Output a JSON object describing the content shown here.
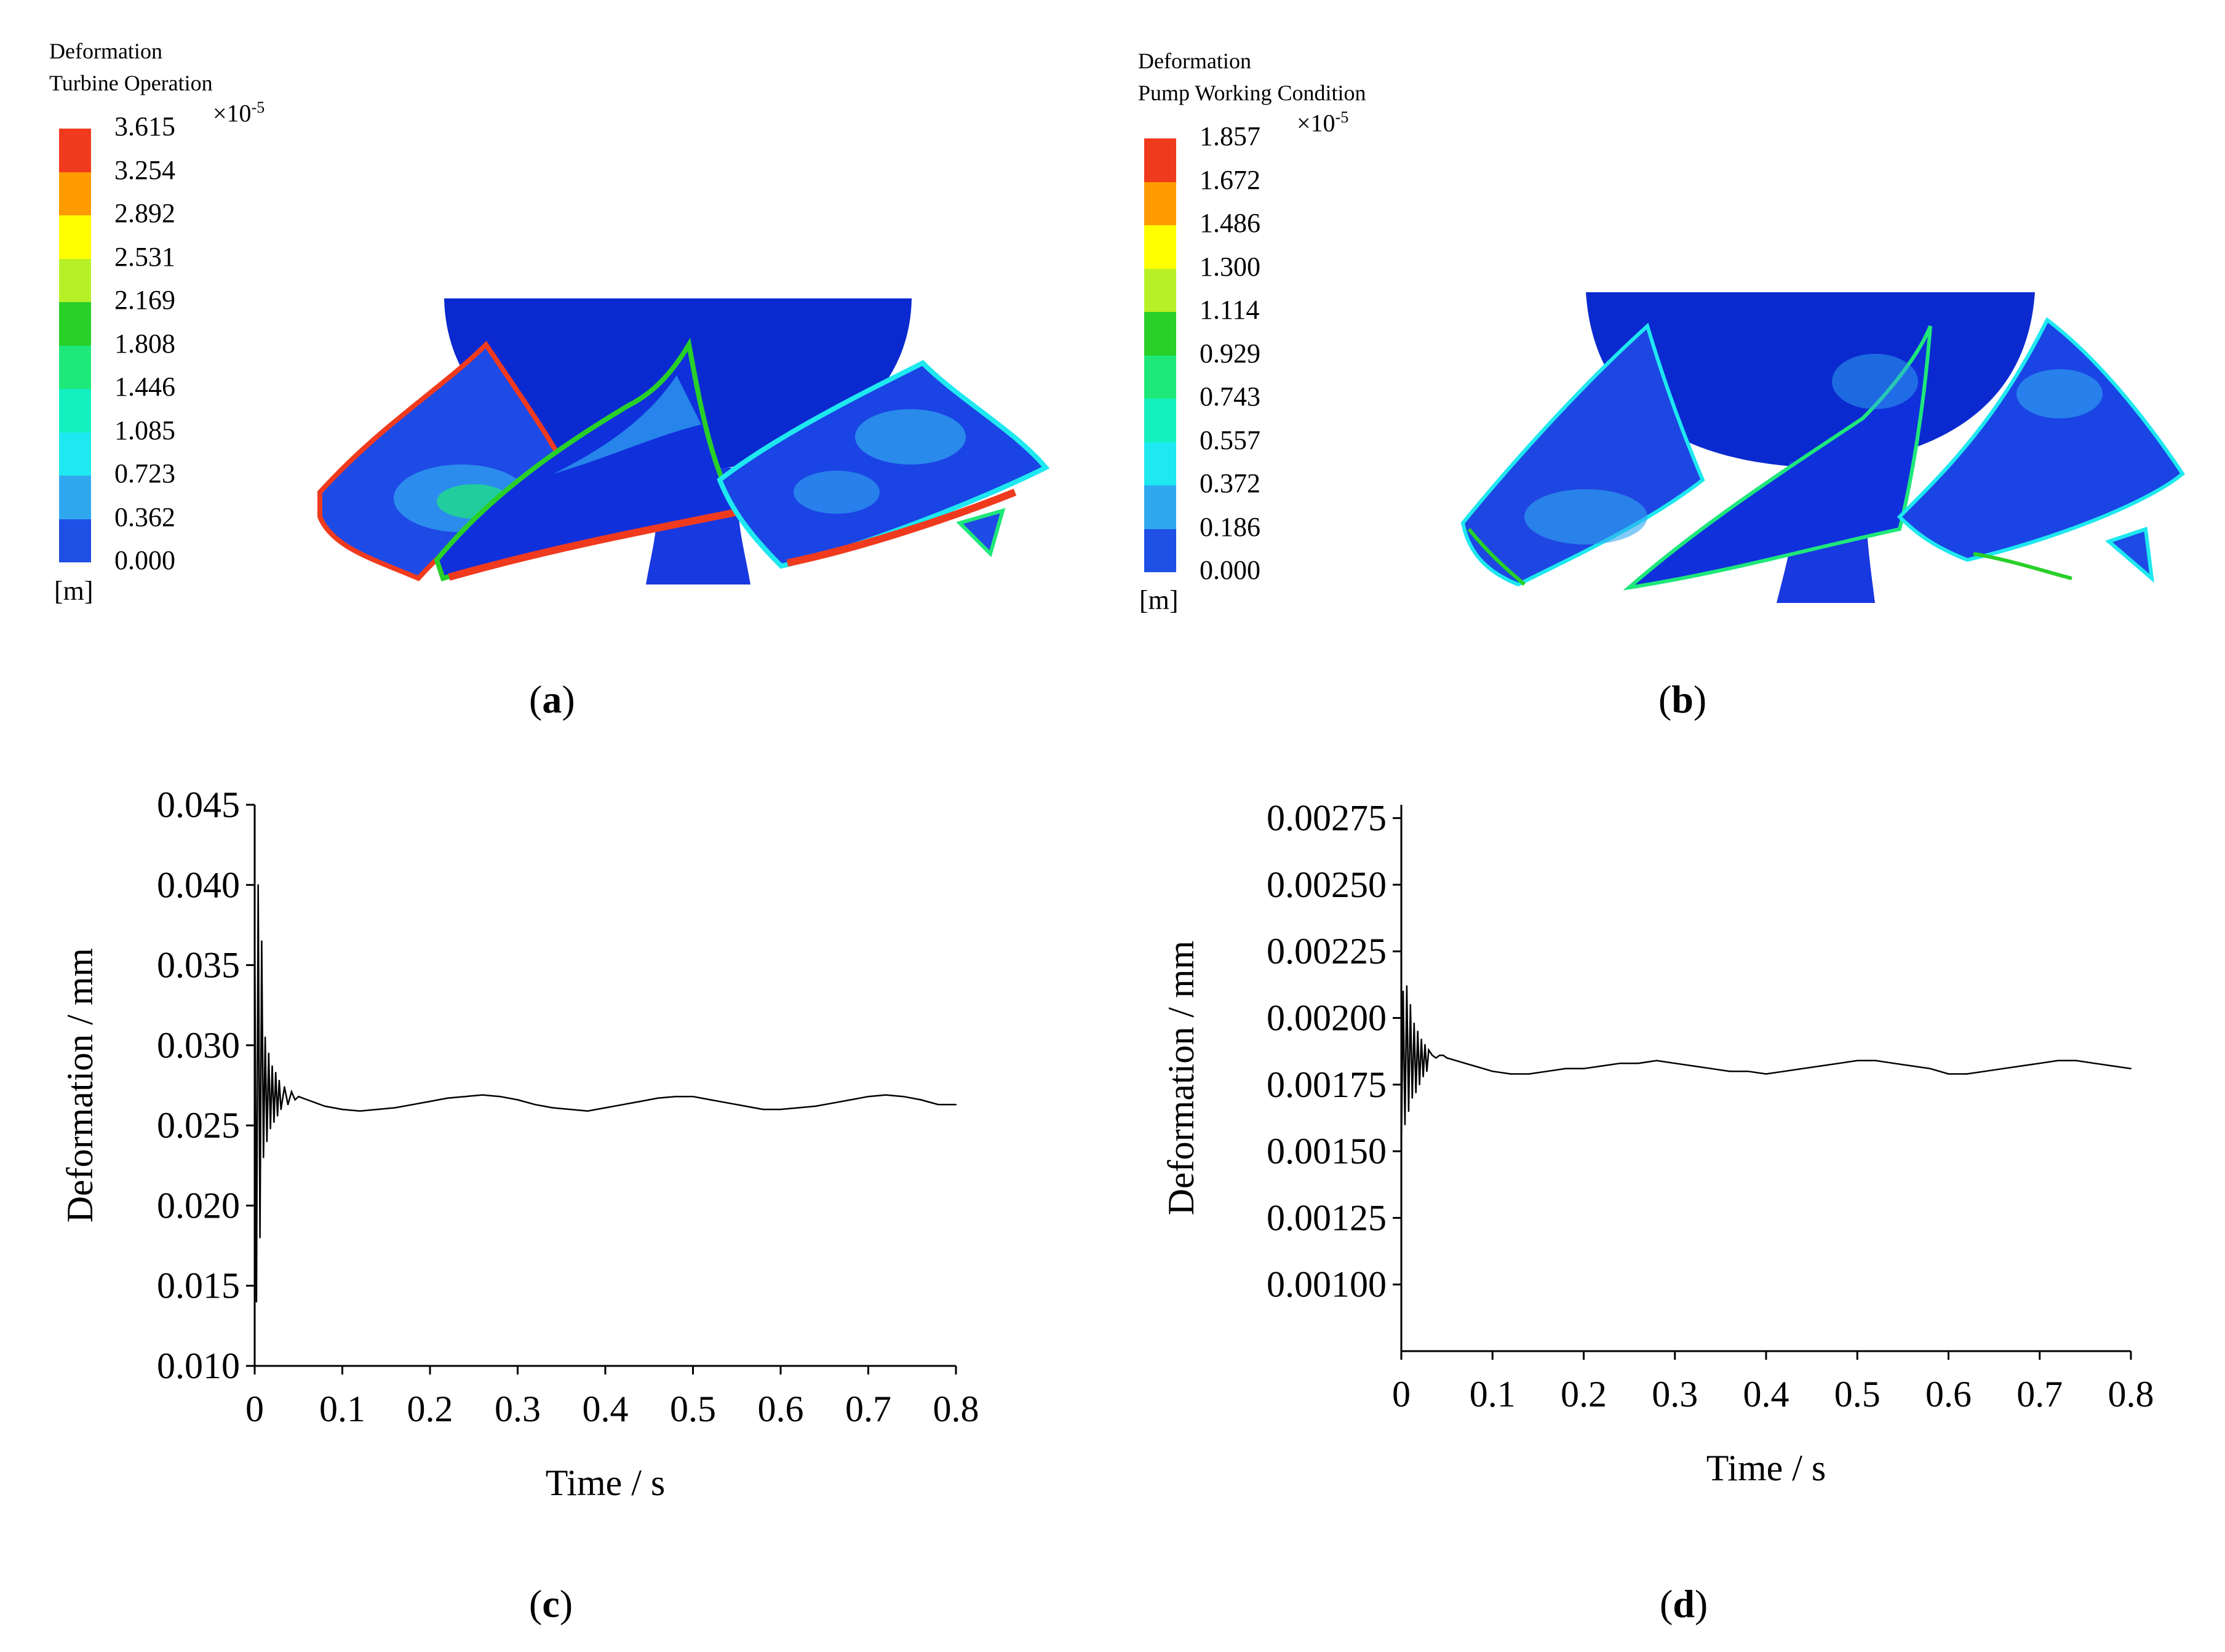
{
  "panel_a": {
    "legend_title_1": "Deformation",
    "legend_title_2": "Turbine Operation",
    "multiplier_base": "×10",
    "multiplier_exp": "-5",
    "values": [
      "3.615",
      "3.254",
      "2.892",
      "2.531",
      "2.169",
      "1.808",
      "1.446",
      "1.085",
      "0.723",
      "0.362",
      "0.000"
    ],
    "unit": "[m]",
    "caption": "a"
  },
  "panel_b": {
    "legend_title_1": "Deformation",
    "legend_title_2": "Pump Working Condition",
    "multiplier_base": "×10",
    "multiplier_exp": "-5",
    "values": [
      "1.857",
      "1.672",
      "1.486",
      "1.300",
      "1.114",
      "0.929",
      "0.743",
      "0.557",
      "0.372",
      "0.186",
      "0.000"
    ],
    "unit": "[m]",
    "caption": "b"
  },
  "colors": {
    "scale": [
      "#f03a1e",
      "#ff9a00",
      "#ffff00",
      "#b8f028",
      "#28d028",
      "#1ee87a",
      "#14f0c0",
      "#1ee8f0",
      "#30a8f0",
      "#1e50e6"
    ],
    "impeller_base": "#1030dc",
    "impeller_dark": "#001080"
  },
  "chart_data": [
    {
      "type": "line",
      "title": "",
      "caption": "c",
      "xlabel": "Time / s",
      "ylabel": "Deformation / mm",
      "xlim": [
        0,
        0.8
      ],
      "ylim": [
        0.01,
        0.045
      ],
      "x_ticks": [
        "0",
        "0.1",
        "0.2",
        "0.3",
        "0.4",
        "0.5",
        "0.6",
        "0.7",
        "0.8"
      ],
      "y_ticks": [
        "0.010",
        "0.015",
        "0.020",
        "0.025",
        "0.030",
        "0.035",
        "0.040",
        "0.045"
      ],
      "series": [
        {
          "x": [
            0.0,
            0.002,
            0.004,
            0.006,
            0.008,
            0.01,
            0.012,
            0.014,
            0.016,
            0.018,
            0.02,
            0.022,
            0.024,
            0.026,
            0.028,
            0.03,
            0.034,
            0.038,
            0.042,
            0.046,
            0.05,
            0.06,
            0.07,
            0.08,
            0.09,
            0.1,
            0.12,
            0.14,
            0.16,
            0.18,
            0.2,
            0.22,
            0.24,
            0.26,
            0.28,
            0.3,
            0.32,
            0.34,
            0.36,
            0.38,
            0.4,
            0.42,
            0.44,
            0.46,
            0.48,
            0.5,
            0.52,
            0.54,
            0.56,
            0.58,
            0.6,
            0.62,
            0.64,
            0.66,
            0.68,
            0.7,
            0.72,
            0.74,
            0.76,
            0.78,
            0.8
          ],
          "y": [
            0.038,
            0.014,
            0.04,
            0.018,
            0.0365,
            0.023,
            0.0305,
            0.024,
            0.0295,
            0.0248,
            0.0287,
            0.0252,
            0.0283,
            0.0256,
            0.0278,
            0.026,
            0.0274,
            0.0263,
            0.0271,
            0.0266,
            0.0268,
            0.0266,
            0.0264,
            0.0262,
            0.0261,
            0.026,
            0.0259,
            0.026,
            0.0261,
            0.0263,
            0.0265,
            0.0267,
            0.0268,
            0.0269,
            0.0268,
            0.0266,
            0.0263,
            0.0261,
            0.026,
            0.0259,
            0.0261,
            0.0263,
            0.0265,
            0.0267,
            0.0268,
            0.0268,
            0.0266,
            0.0264,
            0.0262,
            0.026,
            0.026,
            0.0261,
            0.0262,
            0.0264,
            0.0266,
            0.0268,
            0.0269,
            0.0268,
            0.0266,
            0.0263,
            0.0263
          ]
        }
      ]
    },
    {
      "type": "line",
      "title": "",
      "caption": "d",
      "xlabel": "Time / s",
      "ylabel": "Deformation / mm",
      "xlim": [
        0,
        0.8
      ],
      "ylim": [
        0.00075,
        0.0028
      ],
      "x_ticks": [
        "0",
        "0.1",
        "0.2",
        "0.3",
        "0.4",
        "0.5",
        "0.6",
        "0.7",
        "0.8"
      ],
      "y_ticks": [
        "0.00100",
        "0.00125",
        "0.00150",
        "0.00175",
        "0.00200",
        "0.00225",
        "0.00250",
        "0.00275"
      ],
      "series": [
        {
          "x": [
            0.0,
            0.002,
            0.004,
            0.006,
            0.008,
            0.01,
            0.012,
            0.014,
            0.016,
            0.018,
            0.02,
            0.022,
            0.024,
            0.026,
            0.028,
            0.03,
            0.034,
            0.038,
            0.042,
            0.046,
            0.05,
            0.06,
            0.07,
            0.08,
            0.09,
            0.1,
            0.12,
            0.14,
            0.16,
            0.18,
            0.2,
            0.22,
            0.24,
            0.26,
            0.28,
            0.3,
            0.32,
            0.34,
            0.36,
            0.38,
            0.4,
            0.42,
            0.44,
            0.46,
            0.48,
            0.5,
            0.52,
            0.54,
            0.56,
            0.58,
            0.6,
            0.62,
            0.64,
            0.66,
            0.68,
            0.7,
            0.72,
            0.74,
            0.76,
            0.78,
            0.8
          ],
          "y": [
            0.0015,
            0.0021,
            0.0016,
            0.00212,
            0.00165,
            0.00205,
            0.0017,
            0.00198,
            0.00172,
            0.00195,
            0.00175,
            0.00192,
            0.00178,
            0.0019,
            0.0018,
            0.00188,
            0.00186,
            0.00185,
            0.00186,
            0.00186,
            0.00185,
            0.00184,
            0.00183,
            0.00182,
            0.00181,
            0.0018,
            0.00179,
            0.00179,
            0.0018,
            0.00181,
            0.00181,
            0.00182,
            0.00183,
            0.00183,
            0.00184,
            0.00183,
            0.00182,
            0.00181,
            0.0018,
            0.0018,
            0.00179,
            0.0018,
            0.00181,
            0.00182,
            0.00183,
            0.00184,
            0.00184,
            0.00183,
            0.00182,
            0.00181,
            0.00179,
            0.00179,
            0.0018,
            0.00181,
            0.00182,
            0.00183,
            0.00184,
            0.00184,
            0.00183,
            0.00182,
            0.00181
          ]
        }
      ]
    }
  ]
}
